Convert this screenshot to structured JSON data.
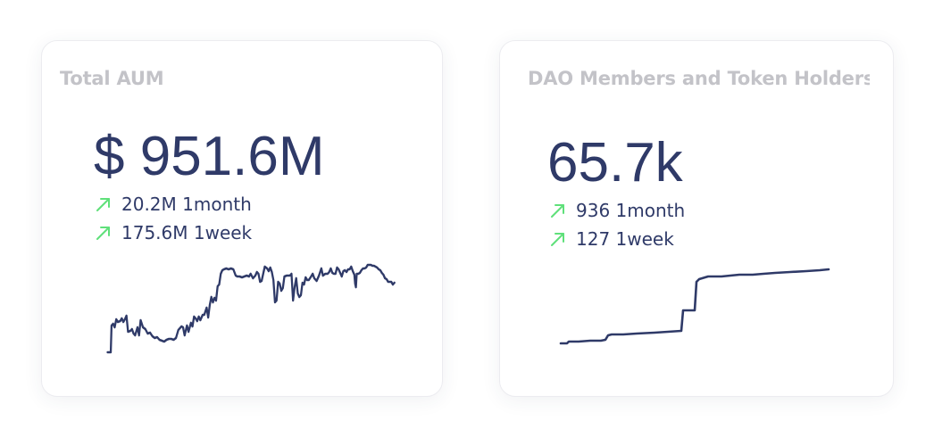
{
  "cards": [
    {
      "title": "Total AUM",
      "value": "$ 951.6M",
      "changes": [
        {
          "icon": "trending-up-icon",
          "text": "20.2M 1month"
        },
        {
          "icon": "trending-up-icon",
          "text": "175.6M 1week"
        }
      ]
    },
    {
      "title": "DAO Members and Token Holders",
      "value": "65.7k",
      "changes": [
        {
          "icon": "trending-up-icon",
          "text": "936 1month"
        },
        {
          "icon": "trending-up-icon",
          "text": "127 1week"
        }
      ]
    }
  ],
  "colors": {
    "title": "#c3c3c8",
    "value": "#2f3a68",
    "arrow": "#5fe07a",
    "line": "#2f3a68"
  }
}
